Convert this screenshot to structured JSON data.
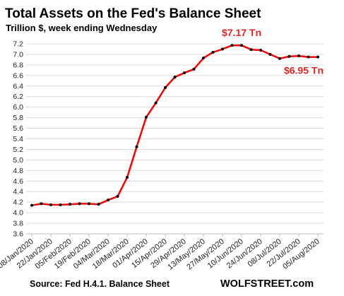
{
  "chart_data": {
    "type": "line",
    "title": "Total Assets on the Fed's Balance Sheet",
    "subtitle": "Trillion $, week ending Wednesday",
    "xlabel": "",
    "ylabel": "",
    "ylim": [
      3.6,
      7.2
    ],
    "yticks": [
      "3.6",
      "3.8",
      "4.0",
      "4.2",
      "4.4",
      "4.6",
      "4.8",
      "5.0",
      "5.2",
      "5.4",
      "5.6",
      "5.8",
      "6.0",
      "6.2",
      "6.4",
      "6.6",
      "6.8",
      "7.0",
      "7.2"
    ],
    "grid": true,
    "x": [
      "08/Jan/2020",
      "15/Jan/2020",
      "22/Jan/2020",
      "29/Jan/2020",
      "05/Feb/2020",
      "12/Feb/2020",
      "19/Feb/2020",
      "26/Feb/2020",
      "04/Mar/2020",
      "11/Mar/2020",
      "18/Mar/2020",
      "25/Mar/2020",
      "01/Apr/2020",
      "08/Apr/2020",
      "15/Apr/2020",
      "22/Apr/2020",
      "29/Apr/2020",
      "06/May/2020",
      "13/May/2020",
      "20/May/2020",
      "27/May/2020",
      "03/Jun/2020",
      "10/Jun/2020",
      "17/Jun/2020",
      "24/Jun/2020",
      "01/Jul/2020",
      "08/Jul/2020",
      "15/Jul/2020",
      "22/Jul/2020",
      "29/Jul/2020",
      "05/Aug/2020"
    ],
    "xtick_labels": [
      "08/Jan/2020",
      "22/Jan/2020",
      "05/Feb/2020",
      "19/Feb/2020",
      "04/Mar/2020",
      "18/Mar/2020",
      "01/Apr/2020",
      "15/Apr/2020",
      "29/Apr/2020",
      "13/May/2020",
      "27/May/2020",
      "10/Jun/2020",
      "24/Jun/2020",
      "08/Jul/2020",
      "22/Jul/2020",
      "05/Aug/2020"
    ],
    "series": [
      {
        "values": [
          4.14,
          4.17,
          4.15,
          4.15,
          4.16,
          4.17,
          4.17,
          4.16,
          4.24,
          4.31,
          4.67,
          5.25,
          5.81,
          6.08,
          6.37,
          6.57,
          6.65,
          6.72,
          6.93,
          7.04,
          7.1,
          7.17,
          7.17,
          7.09,
          7.08,
          7.0,
          6.92,
          6.96,
          6.97,
          6.95,
          6.95
        ],
        "color": "#ff0000"
      }
    ],
    "annotations": [
      {
        "text": "$7.17 Tn",
        "x": "10/Jun/2020",
        "y": 7.17
      },
      {
        "text": "$6.95 Tn",
        "x": "05/Aug/2020",
        "y": 6.95
      }
    ]
  },
  "footer": {
    "source": "Source: Fed H.4.1. Balance Sheet",
    "brand": "WOLFSTREET.com"
  }
}
